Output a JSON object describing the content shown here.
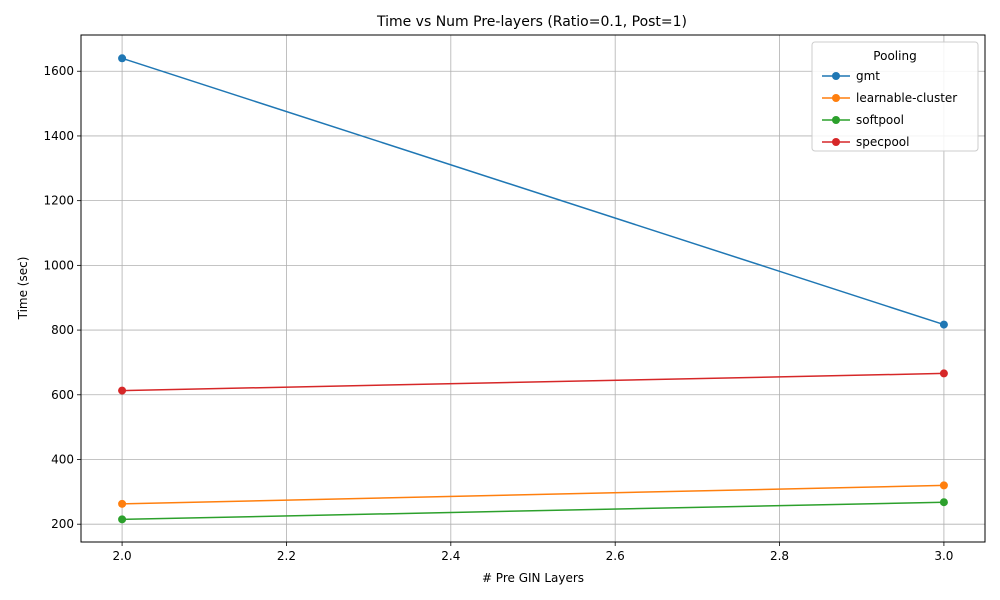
{
  "chart_data": {
    "type": "line",
    "title": "Time vs Num Pre-layers (Ratio=0.1, Post=1)",
    "xlabel": "# Pre GIN Layers",
    "ylabel": "Time (sec)",
    "xlim": [
      1.95,
      3.05
    ],
    "ylim": [
      145,
      1712
    ],
    "xticks": [
      2.0,
      2.2,
      2.4,
      2.6,
      2.8,
      3.0
    ],
    "xtick_labels": [
      "2.0",
      "2.2",
      "2.4",
      "2.6",
      "2.8",
      "3.0"
    ],
    "yticks": [
      200,
      400,
      600,
      800,
      1000,
      1200,
      1400,
      1600
    ],
    "ytick_labels": [
      "200",
      "400",
      "600",
      "800",
      "1000",
      "1200",
      "1400",
      "1600"
    ],
    "grid": true,
    "legend": {
      "title": "Pooling",
      "placement": "top-right"
    },
    "x": [
      2,
      3
    ],
    "series": [
      {
        "name": "gmt",
        "color": "#1f77b4",
        "values": [
          1640,
          817
        ]
      },
      {
        "name": "learnable-cluster",
        "color": "#ff7f0e",
        "values": [
          263,
          320
        ]
      },
      {
        "name": "softpool",
        "color": "#2ca02c",
        "values": [
          215,
          268
        ]
      },
      {
        "name": "specpool",
        "color": "#d62728",
        "values": [
          613,
          666
        ]
      }
    ]
  }
}
